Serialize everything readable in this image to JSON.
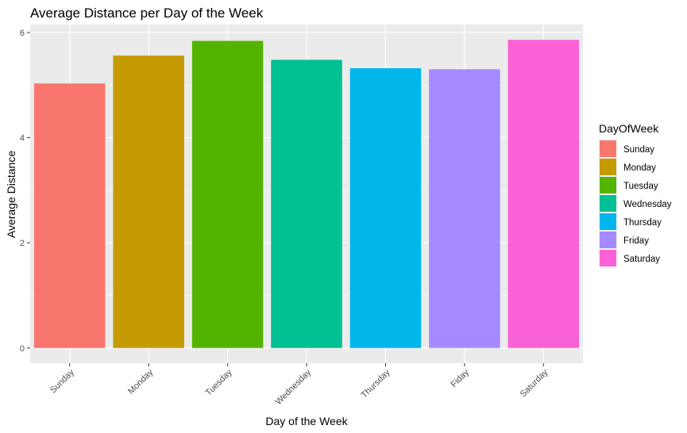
{
  "chart_data": {
    "type": "bar",
    "title": "Average Distance per Day of the Week",
    "xlabel": "Day of the Week",
    "ylabel": "Average Distance",
    "categories": [
      "Sunday",
      "Monday",
      "Tuesday",
      "Wednesday",
      "Thursday",
      "Fiday",
      "Saturday"
    ],
    "values": [
      5.03,
      5.56,
      5.84,
      5.48,
      5.32,
      5.3,
      5.86
    ],
    "colors": [
      "#F8766D",
      "#C49A00",
      "#53B400",
      "#00C094",
      "#00B6EB",
      "#A58AFF",
      "#FB61D7"
    ],
    "ylim": [
      -0.29,
      6.15
    ],
    "yticks": [
      0,
      2,
      4,
      6
    ],
    "grid": true,
    "legend": {
      "title": "DayOfWeek",
      "position": "right",
      "entries": [
        "Sunday",
        "Monday",
        "Tuesday",
        "Wednesday",
        "Thursday",
        "Friday",
        "Saturday"
      ]
    }
  }
}
